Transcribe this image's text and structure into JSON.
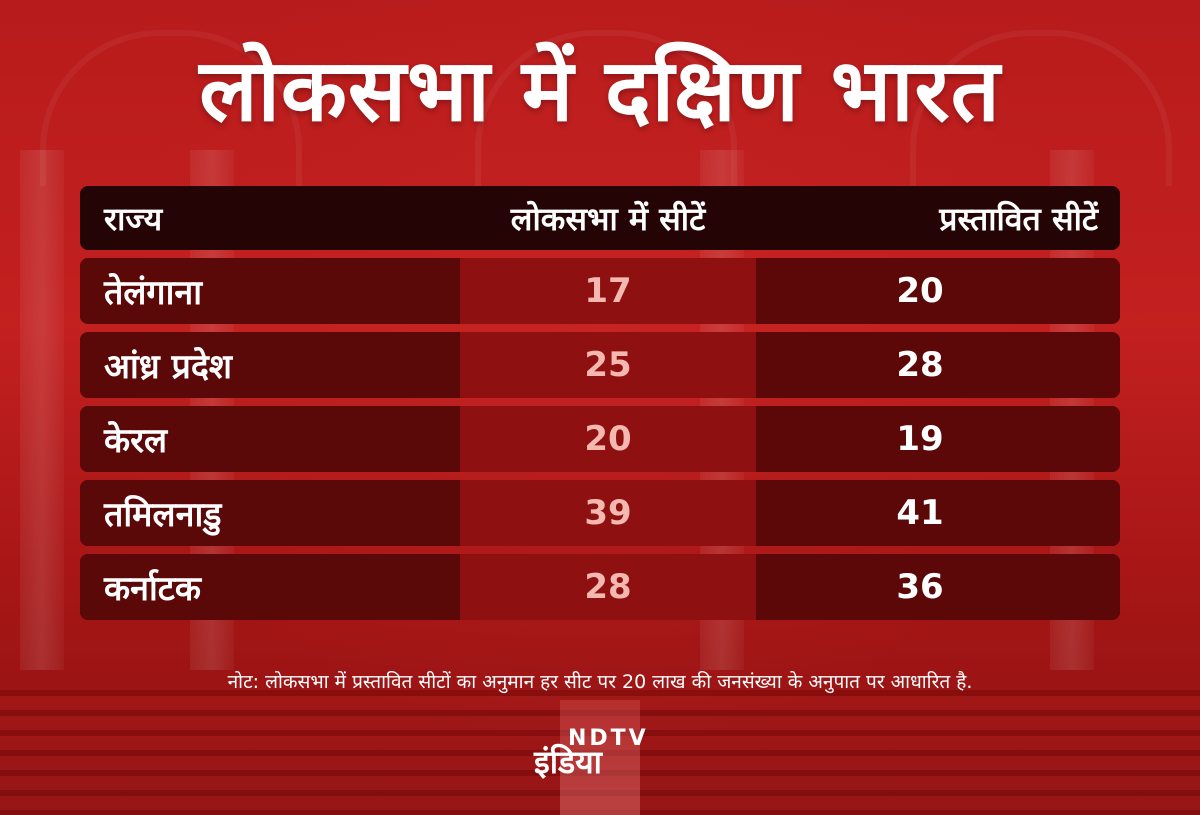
{
  "title": "लोकसभा में दक्षिण भारत",
  "table": {
    "headers": [
      "राज्य",
      "लोकसभा में सीटें",
      "प्रस्तावित सीटें"
    ],
    "rows": [
      {
        "state": "तेलंगाना",
        "current_seats": "17",
        "proposed_seats": "20"
      },
      {
        "state": "आंध्र प्रदेश",
        "current_seats": "25",
        "proposed_seats": "28"
      },
      {
        "state": "केरल",
        "current_seats": "20",
        "proposed_seats": "19"
      },
      {
        "state": "तमिलनाडु",
        "current_seats": "39",
        "proposed_seats": "41"
      },
      {
        "state": "कर्नाटक",
        "current_seats": "28",
        "proposed_seats": "36"
      }
    ]
  },
  "note": "नोट: लोकसभा में प्रस्तावित सीटों का अनुमान हर सीट पर 20 लाख की जनसंख्या के अनुपात पर आधारित है.",
  "logo": {
    "top_text": "NDTV",
    "bottom_text": "इंडिया"
  },
  "colors": {
    "background": "#c32020",
    "header_row": "#240404",
    "row_dark": "#5a0808",
    "row_mid": "#8e1010",
    "current_value_text": "#f4b8b0",
    "text": "#ffffff"
  }
}
